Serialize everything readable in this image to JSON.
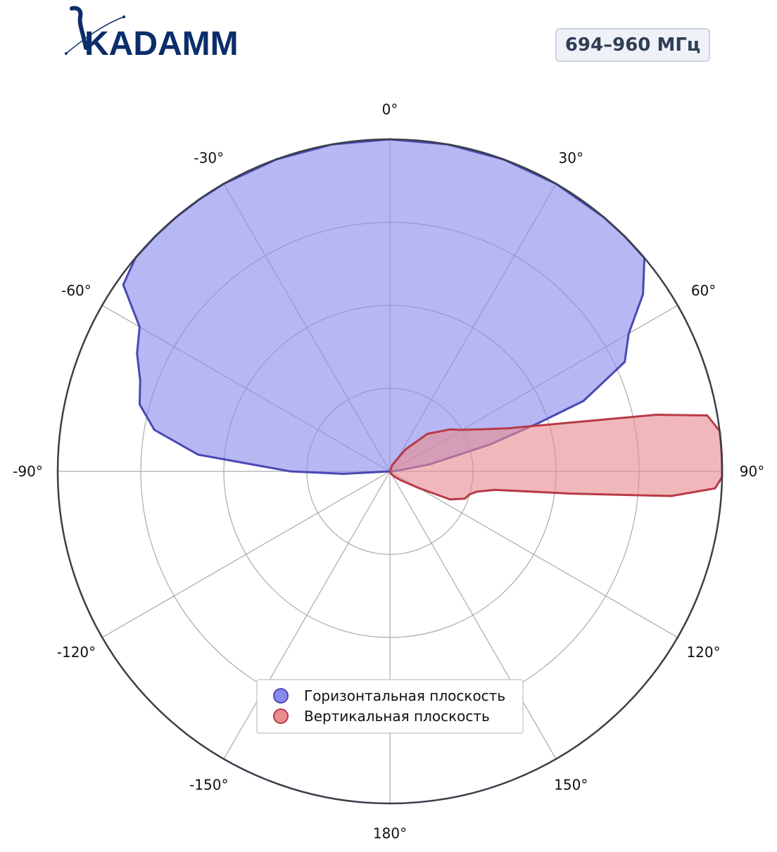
{
  "brand": {
    "name": "KADAMM"
  },
  "badge": {
    "frequency_label": "694–960 МГц"
  },
  "colors": {
    "horizontal_fill": "#8a8aeb",
    "horizontal_stroke": "#4b48b3",
    "vertical_fill": "#e88d91",
    "vertical_stroke": "#b83a47",
    "logo": "#0b2d6b"
  },
  "chart_data": {
    "type": "polar-area",
    "title": "",
    "theta_ticks": [
      "0°",
      "30°",
      "60°",
      "90°",
      "120°",
      "150°",
      "180°",
      "-150°",
      "-120°",
      "-90°",
      "-60°",
      "-30°"
    ],
    "theta_tick_angles": [
      0,
      30,
      60,
      90,
      120,
      150,
      180,
      -150,
      -120,
      -90,
      -60,
      -30
    ],
    "r_range": [
      0,
      1
    ],
    "r_gridlines": [
      0.25,
      0.5,
      0.75,
      1.0
    ],
    "grid": true,
    "legend_position": "bottom-center",
    "series": [
      {
        "name": "Горизонтальная плоскость",
        "angles": [
          -93,
          -90,
          -85,
          -80,
          -75,
          -70,
          -65,
          -60,
          -55,
          -50,
          -45,
          -40,
          -35,
          -30,
          -20,
          -10,
          0,
          10,
          20,
          30,
          40,
          45,
          50,
          55,
          60,
          65,
          70,
          72,
          75,
          80,
          85,
          90,
          95
        ],
        "values": [
          0.14,
          0.3,
          0.58,
          0.72,
          0.78,
          0.8,
          0.84,
          0.87,
          0.98,
          1.0,
          1.0,
          1.0,
          1.0,
          1.0,
          1.0,
          1.0,
          1.0,
          1.0,
          1.0,
          1.0,
          1.0,
          1.0,
          1.0,
          0.93,
          0.83,
          0.78,
          0.62,
          0.47,
          0.31,
          0.12,
          0.02,
          0.005,
          0.0
        ]
      },
      {
        "name": "Вертикальная плоскость",
        "angles": [
          0,
          20,
          35,
          45,
          55,
          60,
          65,
          70,
          75,
          78,
          80,
          83,
          85,
          87,
          89,
          91,
          93,
          95,
          97,
          100,
          103,
          106,
          110,
          115,
          120,
          130,
          140,
          150,
          160,
          180
        ],
        "values": [
          0.0,
          0.02,
          0.08,
          0.16,
          0.22,
          0.25,
          0.3,
          0.38,
          0.57,
          0.82,
          0.97,
          1.0,
          1.0,
          1.0,
          1.0,
          1.0,
          0.98,
          0.85,
          0.55,
          0.32,
          0.27,
          0.25,
          0.24,
          0.2,
          0.1,
          0.04,
          0.02,
          0.01,
          0.005,
          0.0
        ]
      }
    ]
  }
}
